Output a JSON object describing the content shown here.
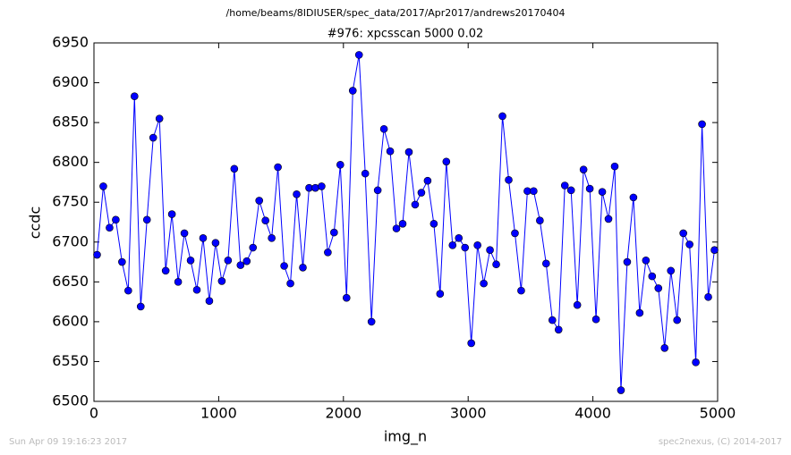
{
  "chart_data": {
    "type": "line",
    "suptitle": "/home/beams/8IDIUSER/spec_data/2017/Apr2017/andrews20170404",
    "title": "#976: xpcsscan 5000 0.02",
    "x_label": "img_n",
    "y_label": "ccdc",
    "footer_left": "Sun Apr 09 19:16:23 2017",
    "footer_right": "spec2nexus, (C) 2014-2017",
    "x": [
      25,
      75,
      125,
      175,
      225,
      275,
      325,
      375,
      425,
      475,
      525,
      575,
      625,
      675,
      725,
      775,
      825,
      875,
      925,
      975,
      1025,
      1075,
      1125,
      1175,
      1225,
      1275,
      1325,
      1375,
      1425,
      1475,
      1525,
      1575,
      1625,
      1675,
      1725,
      1775,
      1825,
      1875,
      1925,
      1975,
      2025,
      2075,
      2125,
      2175,
      2225,
      2275,
      2325,
      2375,
      2425,
      2475,
      2525,
      2575,
      2625,
      2675,
      2725,
      2775,
      2825,
      2875,
      2925,
      2975,
      3025,
      3075,
      3125,
      3175,
      3225,
      3275,
      3325,
      3375,
      3425,
      3475,
      3525,
      3575,
      3625,
      3675,
      3725,
      3775,
      3825,
      3875,
      3925,
      3975,
      4025,
      4075,
      4125,
      4175,
      4225,
      4275,
      4325,
      4375,
      4425,
      4475,
      4525,
      4575,
      4625,
      4675,
      4725,
      4775,
      4825,
      4875,
      4925,
      4975
    ],
    "series": [
      {
        "name": "ccdc",
        "color": "#0000ff",
        "values": [
          6684,
          6770,
          6718,
          6728,
          6675,
          6639,
          6883,
          6619,
          6728,
          6831,
          6855,
          6664,
          6735,
          6650,
          6711,
          6677,
          6640,
          6705,
          6626,
          6699,
          6651,
          6677,
          6792,
          6671,
          6676,
          6693,
          6752,
          6727,
          6705,
          6794,
          6670,
          6648,
          6760,
          6668,
          6768,
          6768,
          6770,
          6687,
          6712,
          6797,
          6630,
          6890,
          6935,
          6786,
          6600,
          6765,
          6842,
          6814,
          6717,
          6723,
          6813,
          6747,
          6762,
          6777,
          6723,
          6635,
          6801,
          6696,
          6705,
          6693,
          6573,
          6696,
          6648,
          6690,
          6672,
          6858,
          6778,
          6711,
          6639,
          6764,
          6764,
          6727,
          6673,
          6602,
          6590,
          6771,
          6765,
          6621,
          6791,
          6767,
          6603,
          6763,
          6729,
          6795,
          6514,
          6675,
          6756,
          6611,
          6677,
          6657,
          6642,
          6567,
          6664,
          6602,
          6711,
          6697,
          6549,
          6848,
          6631,
          6690
        ]
      }
    ],
    "xlim": [
      0,
      5000
    ],
    "xticks": [
      0,
      1000,
      2000,
      3000,
      4000,
      5000
    ],
    "ylim": [
      6500,
      6950
    ],
    "yticks": [
      6500,
      6550,
      6600,
      6650,
      6700,
      6750,
      6800,
      6850,
      6900,
      6950
    ]
  }
}
